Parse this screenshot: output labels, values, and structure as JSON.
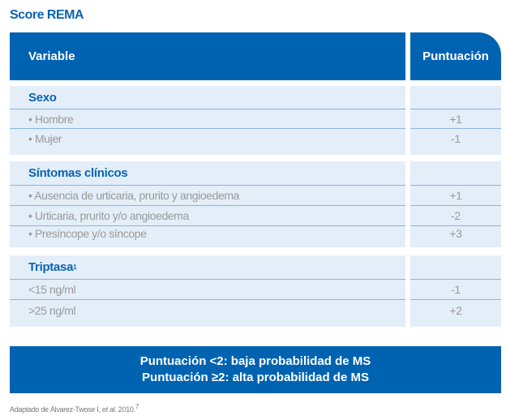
{
  "title": "Score REMA",
  "header": {
    "variable": "Variable",
    "score": "Puntuación"
  },
  "groups": [
    {
      "name": "Sexo",
      "sup": "",
      "rows": [
        {
          "label": "• Hombre",
          "score": "+1"
        },
        {
          "label": "• Mujer",
          "score": "-1"
        }
      ]
    },
    {
      "name": "Síntomas clínicos",
      "sup": "",
      "rows": [
        {
          "label": "• Ausencia de urticaria, prurito y angioedema",
          "score": "+1"
        },
        {
          "label": "• Urticaria, prurito y/o angioedema",
          "score": "-2"
        },
        {
          "label": "• Presíncope y/o síncope",
          "score": "+3"
        }
      ]
    },
    {
      "name": "Triptasa",
      "sup": "1",
      "rows": [
        {
          "label": "<15 ng/ml",
          "score": "-1"
        },
        {
          "label": ">25 ng/ml",
          "score": "+2"
        }
      ]
    }
  ],
  "summary": {
    "line1": "Puntuación <2: baja probabilidad de MS",
    "line2": "Puntuación ≥2: alta probabilidad de MS"
  },
  "footnote": {
    "text": "Adaptado de Álvarez-Twose I, ",
    "etal": "et al.",
    "year": " 2010.",
    "ref": "7"
  },
  "colors": {
    "primary": "#0063b2",
    "row_bg": "#e3eef8",
    "divider": "#8ab4e0"
  }
}
